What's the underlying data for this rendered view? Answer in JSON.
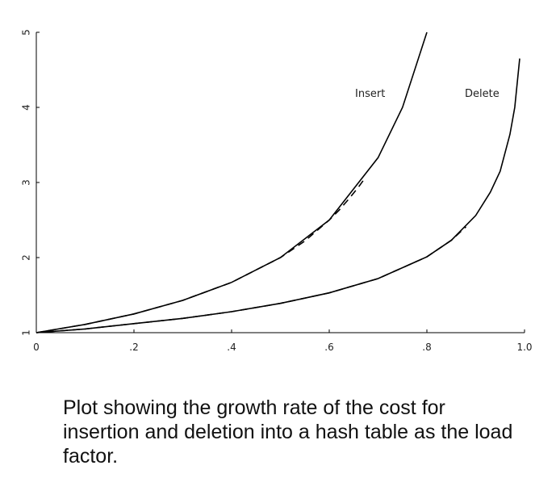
{
  "chart_data": {
    "type": "line",
    "title": "",
    "xlabel": "",
    "ylabel": "",
    "xlim": [
      0,
      1.0
    ],
    "ylim": [
      1,
      5
    ],
    "x_ticks": [
      "0",
      ".2",
      ".4",
      ".6",
      ".8",
      "1.0"
    ],
    "x_tick_values": [
      0,
      0.2,
      0.4,
      0.6,
      0.8,
      1.0
    ],
    "y_ticks": [
      "1",
      "2",
      "3",
      "4",
      "5"
    ],
    "y_tick_values": [
      1,
      2,
      3,
      4,
      5
    ],
    "grid": false,
    "series": [
      {
        "style": "dashed",
        "x": [
          0,
          0.1,
          0.2,
          0.3,
          0.4,
          0.5,
          0.55,
          0.6,
          0.62,
          0.64,
          0.66,
          0.67
        ],
        "y": [
          1.0,
          1.11,
          1.25,
          1.43,
          1.67,
          2.0,
          2.22,
          2.5,
          2.63,
          2.78,
          2.94,
          3.03
        ]
      },
      {
        "style": "solid",
        "x": [
          0,
          0.1,
          0.2,
          0.3,
          0.4,
          0.5,
          0.6,
          0.7,
          0.75,
          0.8
        ],
        "y": [
          1.0,
          1.11,
          1.25,
          1.43,
          1.67,
          2.0,
          2.5,
          3.33,
          4.0,
          5.0
        ]
      },
      {
        "style": "dashed",
        "x": [
          0,
          0.1,
          0.2,
          0.3,
          0.4,
          0.5,
          0.6,
          0.7,
          0.8,
          0.85,
          0.88
        ],
        "y": [
          1.0,
          1.05,
          1.12,
          1.19,
          1.28,
          1.39,
          1.53,
          1.72,
          2.01,
          2.23,
          2.41
        ]
      },
      {
        "style": "solid",
        "x": [
          0,
          0.1,
          0.2,
          0.3,
          0.4,
          0.5,
          0.6,
          0.7,
          0.8,
          0.85,
          0.9,
          0.93,
          0.95,
          0.97,
          0.98,
          0.99
        ],
        "y": [
          1.0,
          1.05,
          1.12,
          1.19,
          1.28,
          1.39,
          1.53,
          1.72,
          2.01,
          2.23,
          2.56,
          2.87,
          3.15,
          3.64,
          4.0,
          4.65
        ]
      }
    ],
    "annotations": [
      "Insert",
      "Delete"
    ]
  },
  "caption": "Plot showing the growth rate of the cost for insertion and deletion into a hash table as the load factor."
}
